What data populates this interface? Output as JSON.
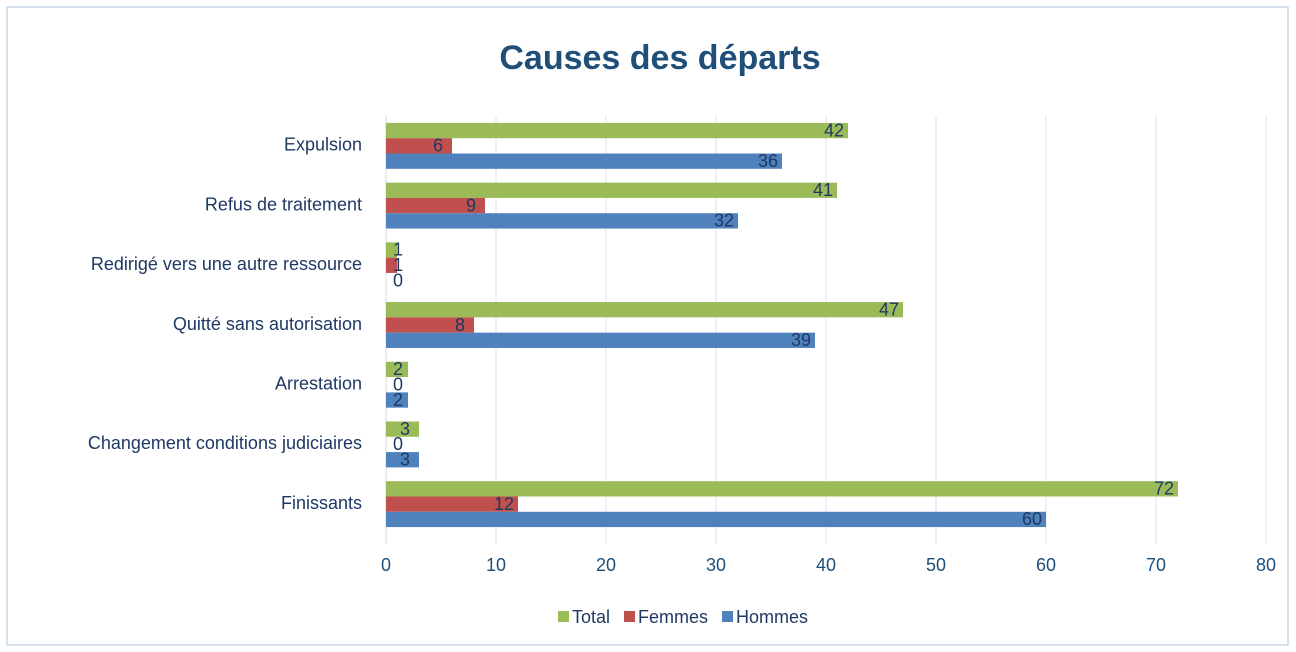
{
  "chart_data": {
    "type": "hbar",
    "title": "Causes des départs",
    "categories": [
      "Expulsion",
      "Refus de traitement",
      "Redirigé vers une autre ressource",
      "Quitté sans autorisation",
      "Arrestation",
      "Changement conditions judiciaires",
      "Finissants"
    ],
    "series": [
      {
        "name": "Total",
        "color": "#9bbb59",
        "values": [
          42,
          41,
          1,
          47,
          2,
          3,
          72
        ]
      },
      {
        "name": "Femmes",
        "color": "#c0504d",
        "values": [
          6,
          9,
          1,
          8,
          0,
          0,
          12
        ]
      },
      {
        "name": "Hommes",
        "color": "#4f81bd",
        "values": [
          36,
          32,
          0,
          39,
          2,
          3,
          60
        ]
      }
    ],
    "xlim": [
      0,
      80
    ],
    "xticks": [
      0,
      10,
      20,
      30,
      40,
      50,
      60,
      70,
      80
    ],
    "grid": true,
    "legend": "bottom"
  }
}
